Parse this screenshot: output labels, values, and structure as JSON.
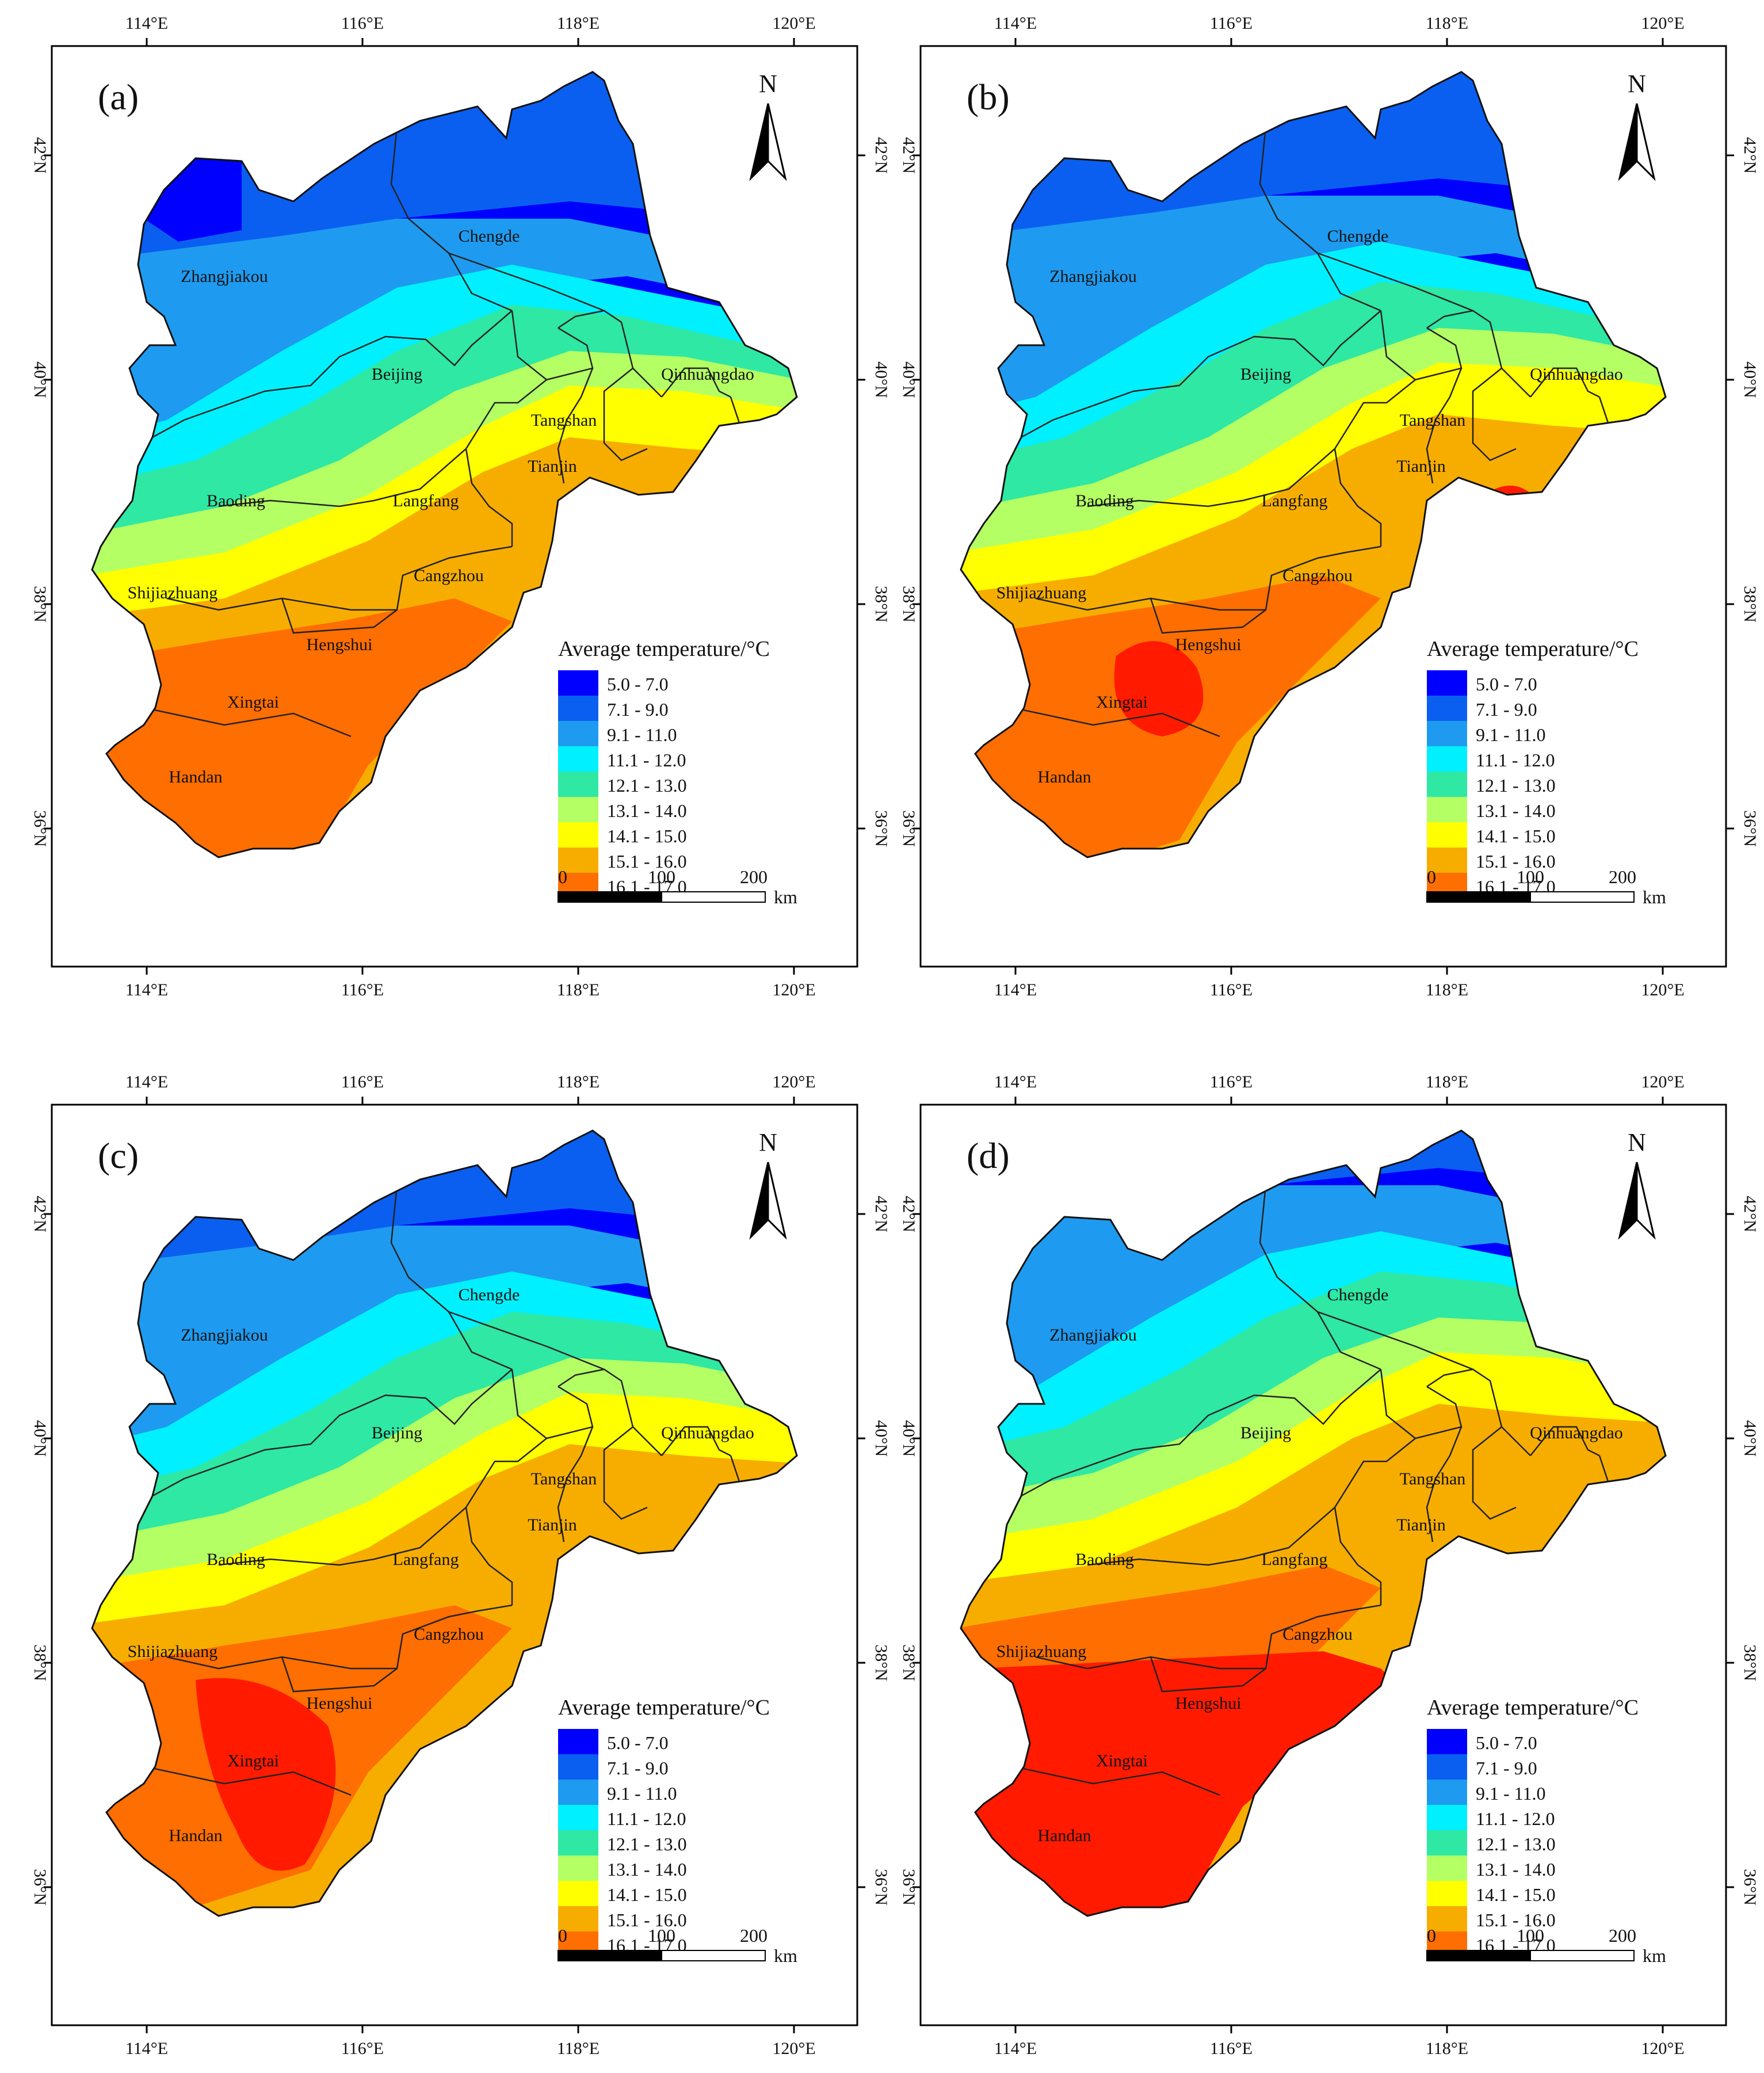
{
  "figure": {
    "panels": [
      {
        "label": "(a)",
        "scenario_index": 0
      },
      {
        "label": "(b)",
        "scenario_index": 1
      },
      {
        "label": "(c)",
        "scenario_index": 2
      },
      {
        "label": "(d)",
        "scenario_index": 3
      }
    ],
    "axes": {
      "x_ticks": [
        "114°E",
        "116°E",
        "118°E",
        "120°E"
      ],
      "y_ticks": [
        "42°N",
        "40°N",
        "38°N",
        "36°N"
      ]
    },
    "north_arrow_label": "N",
    "cities": [
      "Chengde",
      "Zhangjiakou",
      "Beijing",
      "Qinhuangdao",
      "Tangshan",
      "Tianjin",
      "Baoding",
      "Langfang",
      "Cangzhou",
      "Shijiazhuang",
      "Hengshui",
      "Xingtai",
      "Handan"
    ],
    "legend": {
      "title": "Average temperature/°C",
      "classes": [
        {
          "label": "5.0 - 7.0",
          "color": "#0000ff"
        },
        {
          "label": "7.1 - 9.0",
          "color": "#0a5ff0"
        },
        {
          "label": "9.1 - 11.0",
          "color": "#1e9bf0"
        },
        {
          "label": "11.1 - 12.0",
          "color": "#00f0ff"
        },
        {
          "label": "12.1 - 13.0",
          "color": "#2ee8a4"
        },
        {
          "label": "13.1 - 14.0",
          "color": "#b4ff64"
        },
        {
          "label": "14.1 - 15.0",
          "color": "#ffff00"
        },
        {
          "label": "15.1 - 16.0",
          "color": "#f7ad00"
        },
        {
          "label": "16.1 - 17.0",
          "color": "#ff6e00"
        }
      ],
      "extra_color": "#ff1a00"
    },
    "scale_bar": {
      "ticks": [
        "0",
        "100",
        "200"
      ],
      "unit": "km"
    }
  }
}
